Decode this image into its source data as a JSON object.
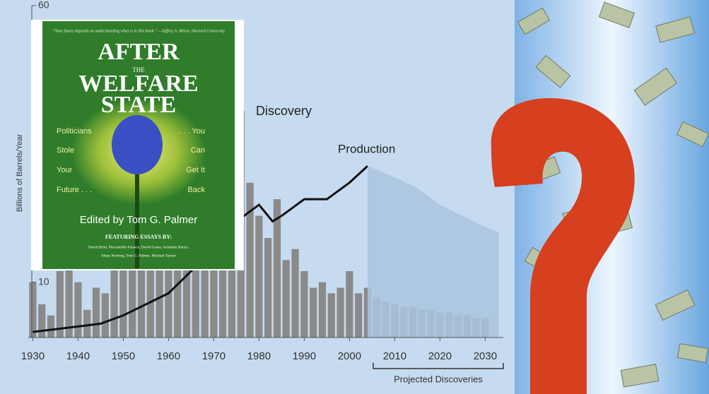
{
  "chart_data": {
    "type": "bar",
    "y_label": "Billions of Barrels/Year",
    "annotation": "Projected Discoveries",
    "xlim": [
      1929,
      2034
    ],
    "xticks": [
      1930,
      1940,
      1950,
      1960,
      1970,
      1980,
      1990,
      2000,
      2010,
      2020,
      2030
    ],
    "ylim": [
      0,
      60
    ],
    "yticks": [
      10,
      60
    ],
    "series": [
      {
        "name": "Discovery",
        "type": "bar",
        "color": "#8a8a8a",
        "x": [
          1930,
          1932,
          1934,
          1936,
          1938,
          1940,
          1942,
          1944,
          1946,
          1948,
          1950,
          1952,
          1954,
          1956,
          1958,
          1960,
          1962,
          1964,
          1966,
          1968,
          1970,
          1972,
          1974,
          1976,
          1978,
          1980,
          1982,
          1984,
          1986,
          1988,
          1990,
          1992,
          1994,
          1996,
          1998,
          2000,
          2002,
          2004,
          2006,
          2008,
          2010,
          2012,
          2014,
          2016,
          2018,
          2020,
          2022,
          2024,
          2026,
          2028,
          2030
        ],
        "values": [
          10,
          6,
          4,
          12,
          18,
          10,
          5,
          9,
          8,
          25,
          22,
          28,
          30,
          27,
          30,
          35,
          32,
          40,
          35,
          38,
          36,
          30,
          34,
          41,
          28,
          22,
          18,
          25,
          14,
          16,
          12,
          9,
          10,
          8,
          9,
          12,
          8,
          9,
          7,
          6.5,
          6,
          5.5,
          5.5,
          5,
          5,
          4.5,
          4.5,
          4,
          4,
          3.5,
          3.5
        ]
      },
      {
        "name": "Production",
        "type": "line",
        "color": "#111111",
        "x": [
          1930,
          1935,
          1940,
          1945,
          1950,
          1955,
          1960,
          1965,
          1970,
          1975,
          1980,
          1983,
          1985,
          1990,
          1995,
          2000,
          2004
        ],
        "values": [
          1,
          1.5,
          2,
          2.5,
          4,
          6,
          8,
          12,
          17,
          21,
          24,
          21,
          22,
          25,
          25,
          28,
          31
        ]
      },
      {
        "type": "area",
        "color": "#a9c4df",
        "x": [
          2004,
          2010,
          2015,
          2020,
          2025,
          2030,
          2033
        ],
        "values": [
          31,
          29,
          27,
          24,
          22,
          20,
          19
        ]
      }
    ]
  },
  "book": {
    "quote": "“Your future depends on understanding what is in this book.” —Jeffrey A. Miron, Harvard University",
    "title": [
      "AFTER",
      "THE",
      "WELFARE",
      "STATE"
    ],
    "left": [
      "Politicians",
      "Stole",
      "Your",
      "Future . . ."
    ],
    "right": [
      ". . . You",
      "Can",
      "Get It",
      "Back"
    ],
    "editor": "Edited by Tom G. Palmer",
    "featuring": "FEATURING ESSAYS BY:",
    "names": [
      "David Brito, Piercamillo Falasca, David Green, Aristides Hatzis,",
      "Johan Norberg, Tom G. Palmer, Michael Tanner"
    ]
  }
}
